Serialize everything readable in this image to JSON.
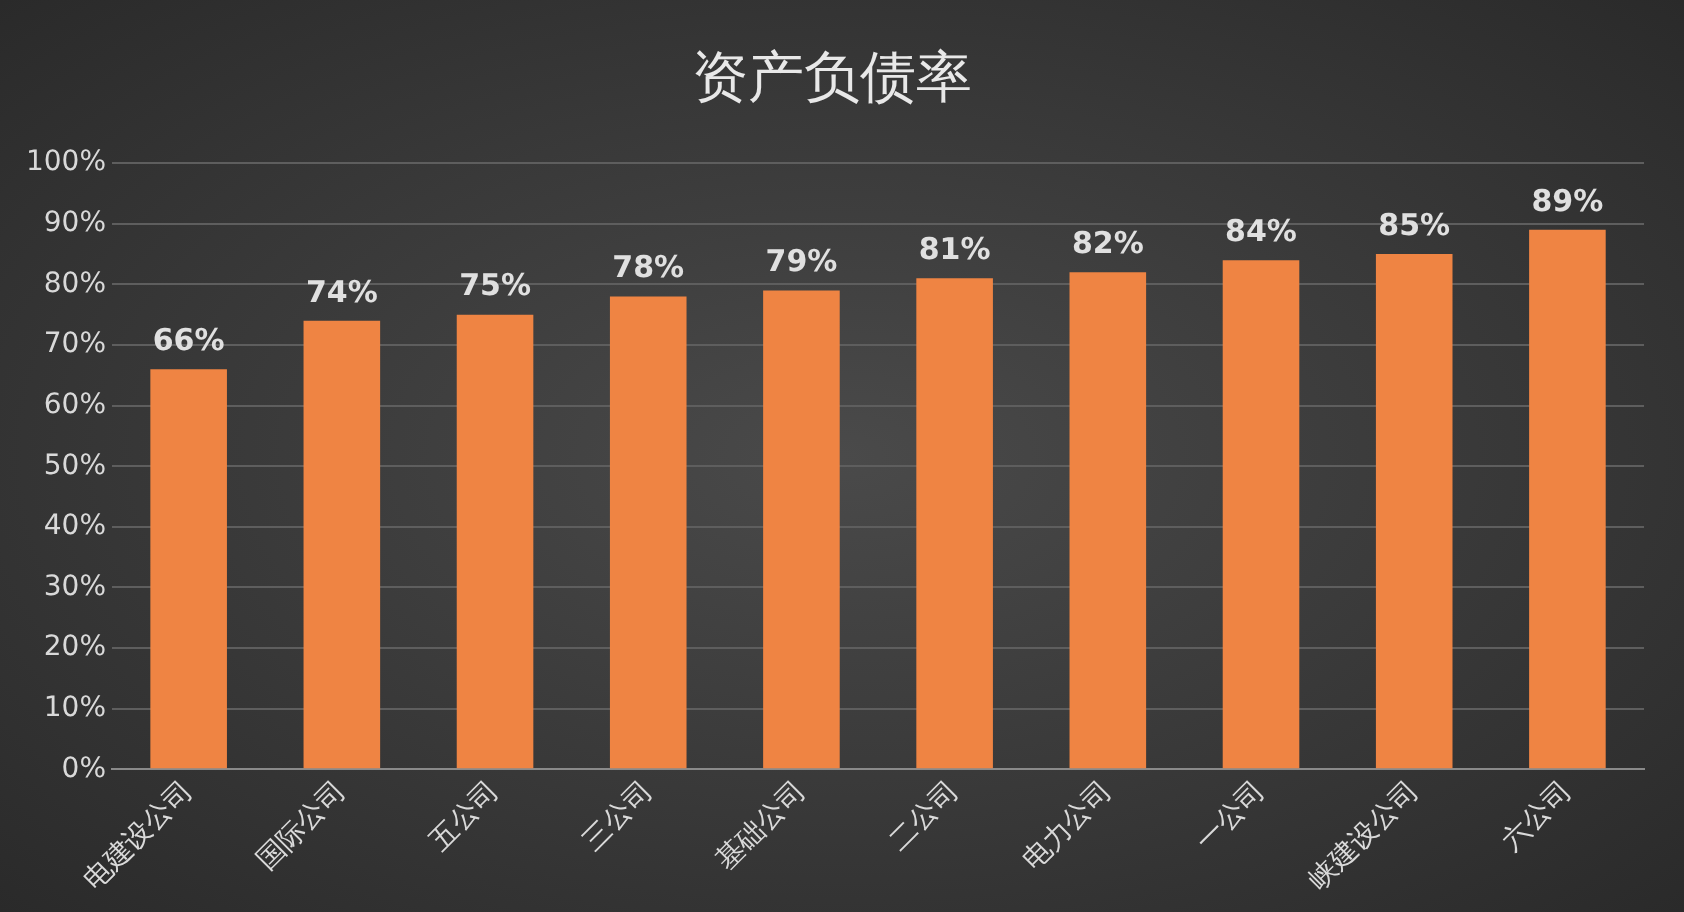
{
  "chart_data": {
    "type": "bar",
    "title": "资产负债率",
    "categories": [
      "电建设公司",
      "国际公司",
      "五公司",
      "三公司",
      "基础公司",
      "二公司",
      "电力公司",
      "一公司",
      "峡建设公司",
      "六公司"
    ],
    "values": [
      66,
      74,
      75,
      78,
      79,
      81,
      82,
      84,
      85,
      89
    ],
    "color": "#ef8443",
    "ylim": [
      0,
      100
    ],
    "yticks": [
      {
        "value": 0,
        "label": "0%"
      },
      {
        "value": 10,
        "label": "10%"
      },
      {
        "value": 20,
        "label": "20%"
      },
      {
        "value": 30,
        "label": "30%"
      },
      {
        "value": 40,
        "label": "40%"
      },
      {
        "value": 50,
        "label": "50%"
      },
      {
        "value": 60,
        "label": "60%"
      },
      {
        "value": 70,
        "label": "70%"
      },
      {
        "value": 80,
        "label": "80%"
      },
      {
        "value": 90,
        "label": "90%"
      },
      {
        "value": 100,
        "label": "100%"
      }
    ],
    "value_labels": [
      "66%",
      "74%",
      "75%",
      "78%",
      "79%",
      "81%",
      "82%",
      "84%",
      "85%",
      "89%"
    ],
    "grid": "y"
  }
}
